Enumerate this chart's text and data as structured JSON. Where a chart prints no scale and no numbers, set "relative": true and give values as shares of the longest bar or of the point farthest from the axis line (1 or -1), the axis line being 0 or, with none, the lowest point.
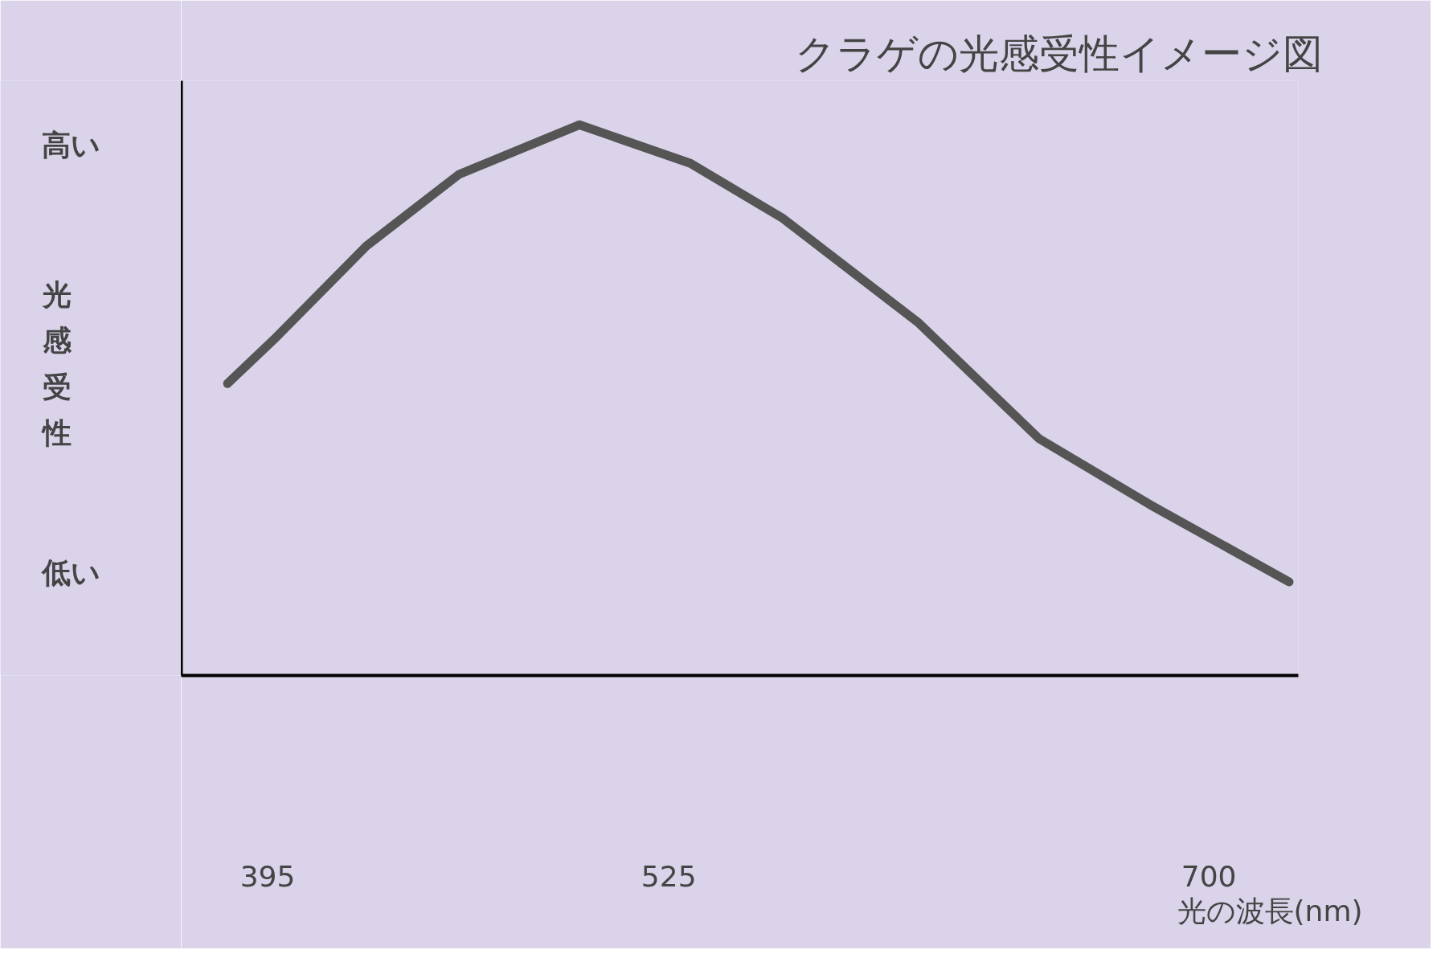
{
  "chart_data": {
    "type": "line",
    "title": "クラゲの光感受性イメージ図",
    "xlabel": "光の波長(nm)",
    "ylabel": "光感受性",
    "relative": true,
    "x": [
      382,
      397,
      427,
      457,
      496,
      532,
      562,
      606,
      645,
      681,
      726
    ],
    "series": [
      {
        "color": "#555555",
        "values": [
          0.53,
          0.61,
          0.78,
          0.91,
          1,
          0.93,
          0.83,
          0.64,
          0.43,
          0.31,
          0.17
        ]
      }
    ],
    "xlim": [
      367,
      729
    ],
    "xticks": [
      395,
      525,
      700
    ],
    "annotations": [
      "高い",
      "低い"
    ],
    "grid": false,
    "marker": "none",
    "line_style": "solid"
  }
}
